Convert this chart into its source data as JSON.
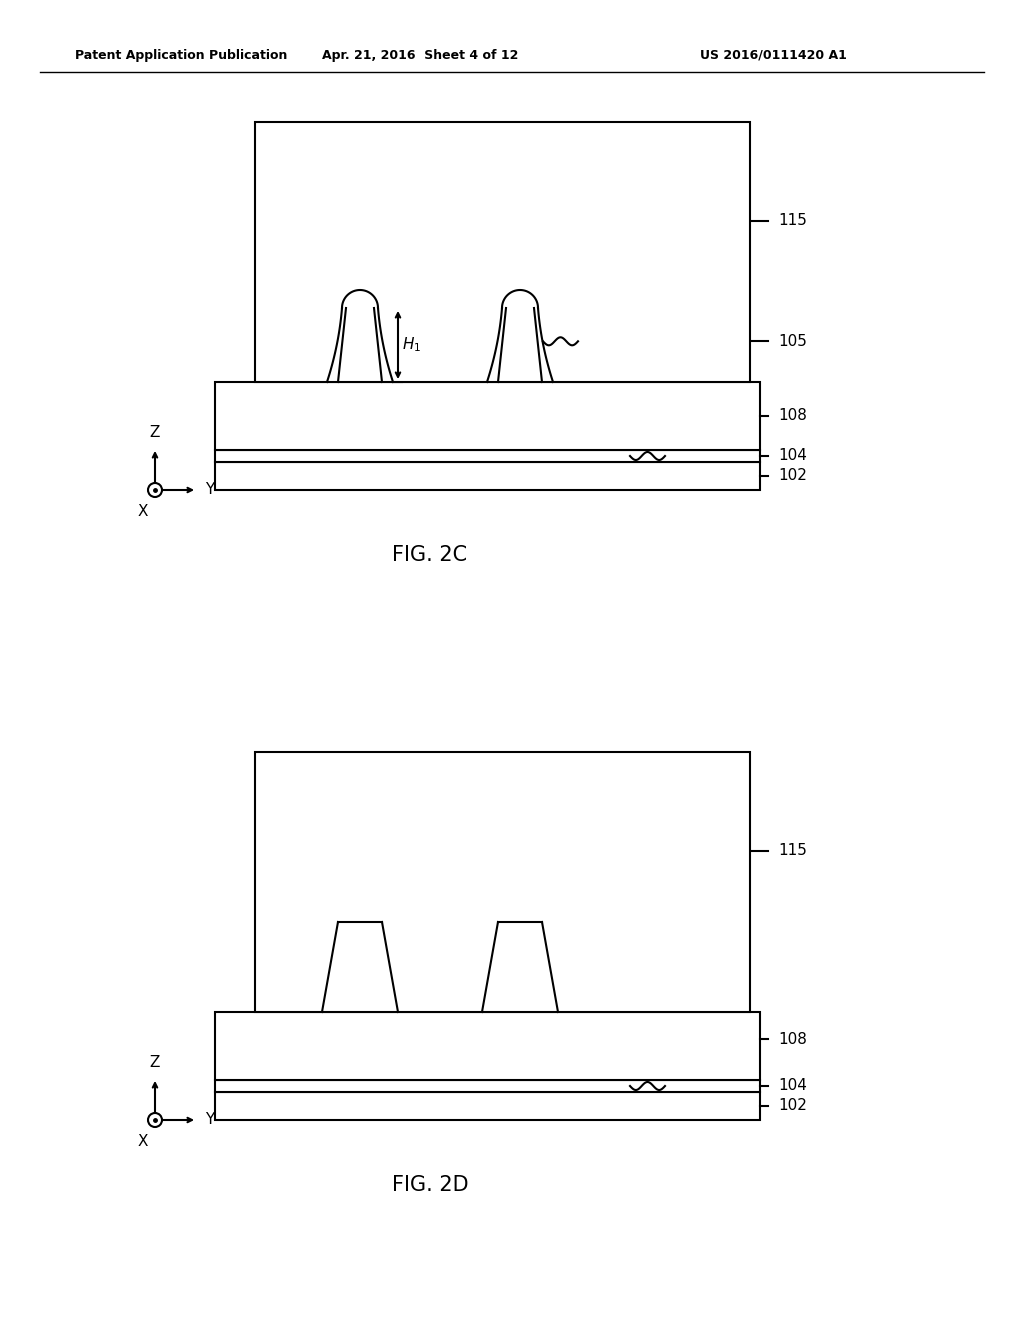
{
  "bg_color": "#ffffff",
  "line_color": "#000000",
  "header_left": "Patent Application Publication",
  "header_mid": "Apr. 21, 2016  Sheet 4 of 12",
  "header_right": "US 2016/0111420 A1",
  "fig2c_label": "FIG. 2C",
  "fig2d_label": "FIG. 2D"
}
